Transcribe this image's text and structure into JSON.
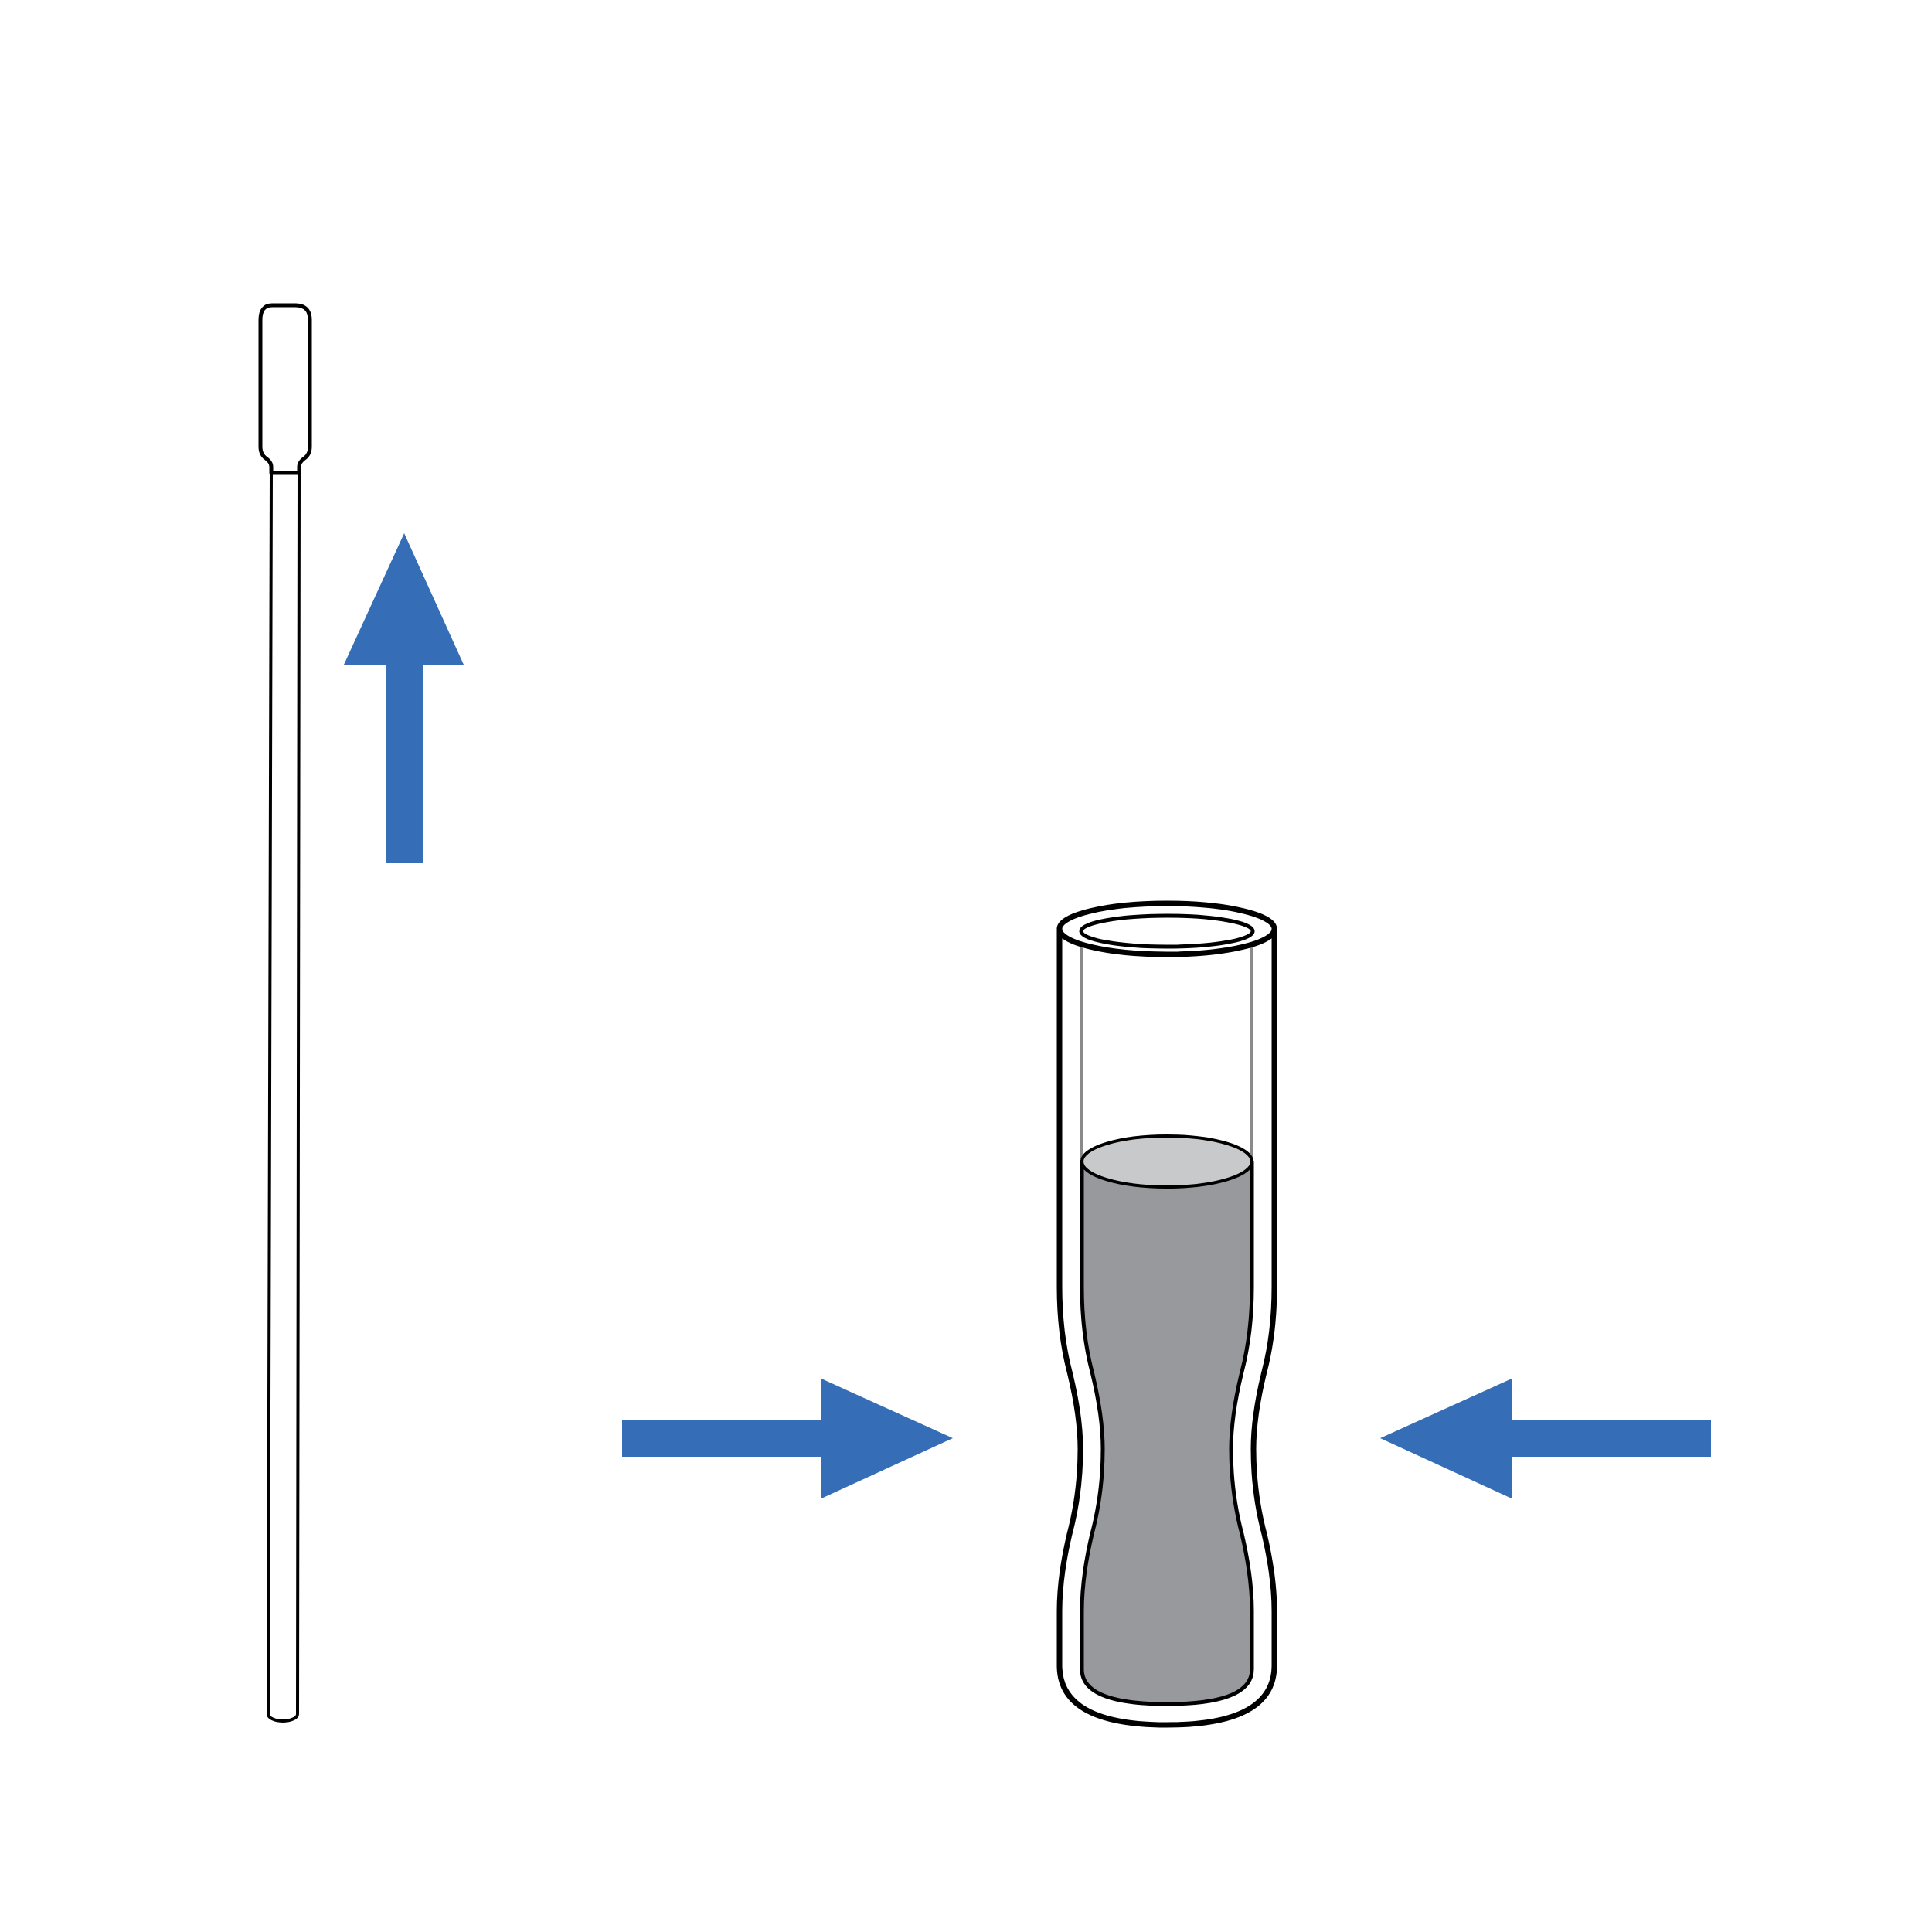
{
  "diagram": {
    "background": "#ffffff",
    "outline_color": "#000000",
    "arrow_color": "#356eb7",
    "liquid_color": "#97999d",
    "liquid_surface_color": "#c8c9cb",
    "inner_wall_color": "#8a8a8a",
    "objects": {
      "swab": "swab",
      "tube": "tube-with-liquid",
      "arrows": [
        "arrow-up",
        "arrow-right",
        "arrow-left"
      ]
    }
  }
}
